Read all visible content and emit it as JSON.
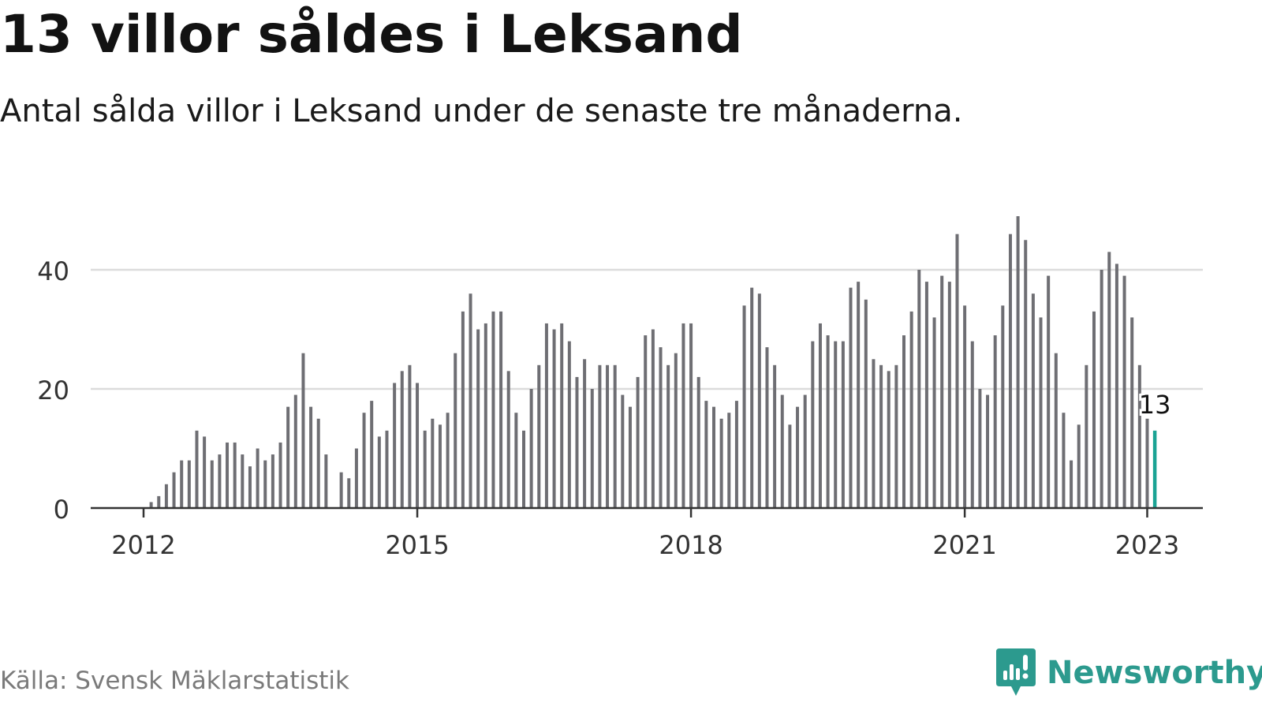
{
  "header": {
    "title": "13 villor såldes i Leksand",
    "subtitle": "Antal sålda villor i Leksand under de senaste tre månaderna."
  },
  "footer": {
    "source": "Källa: Svensk Mäklarstatistik",
    "brand": "Newsworthy"
  },
  "colors": {
    "bar": "#6e6e73",
    "highlight": "#1aa394",
    "grid": "#dcdcdc",
    "axis": "#333333",
    "brand": "#2c9a8e"
  },
  "chart_data": {
    "type": "bar",
    "x_start": "2011-07",
    "x_interval": "month",
    "x_ticks": [
      "2012",
      "2015",
      "2018",
      "2021",
      "2023"
    ],
    "y_ticks": [
      0,
      20,
      40
    ],
    "ylim": [
      0,
      49
    ],
    "grid": true,
    "highlight_label": "13",
    "values": [
      0,
      0,
      0,
      0,
      0,
      0,
      0,
      1,
      2,
      4,
      6,
      8,
      8,
      13,
      12,
      8,
      9,
      11,
      11,
      9,
      7,
      10,
      8,
      9,
      11,
      17,
      19,
      26,
      17,
      15,
      9,
      0,
      6,
      5,
      10,
      16,
      18,
      12,
      13,
      21,
      23,
      24,
      21,
      13,
      15,
      14,
      16,
      26,
      33,
      36,
      30,
      31,
      33,
      33,
      23,
      16,
      13,
      20,
      24,
      31,
      30,
      31,
      28,
      22,
      25,
      20,
      24,
      24,
      24,
      19,
      17,
      22,
      29,
      30,
      27,
      24,
      26,
      31,
      31,
      22,
      18,
      17,
      15,
      16,
      18,
      34,
      37,
      36,
      27,
      24,
      19,
      14,
      17,
      19,
      28,
      31,
      29,
      28,
      28,
      37,
      38,
      35,
      25,
      24,
      23,
      24,
      29,
      33,
      40,
      38,
      32,
      39,
      38,
      46,
      34,
      28,
      20,
      19,
      29,
      34,
      46,
      49,
      45,
      36,
      32,
      39,
      26,
      16,
      8,
      14,
      24,
      33,
      40,
      43,
      41,
      39,
      32,
      24,
      15,
      13
    ]
  }
}
